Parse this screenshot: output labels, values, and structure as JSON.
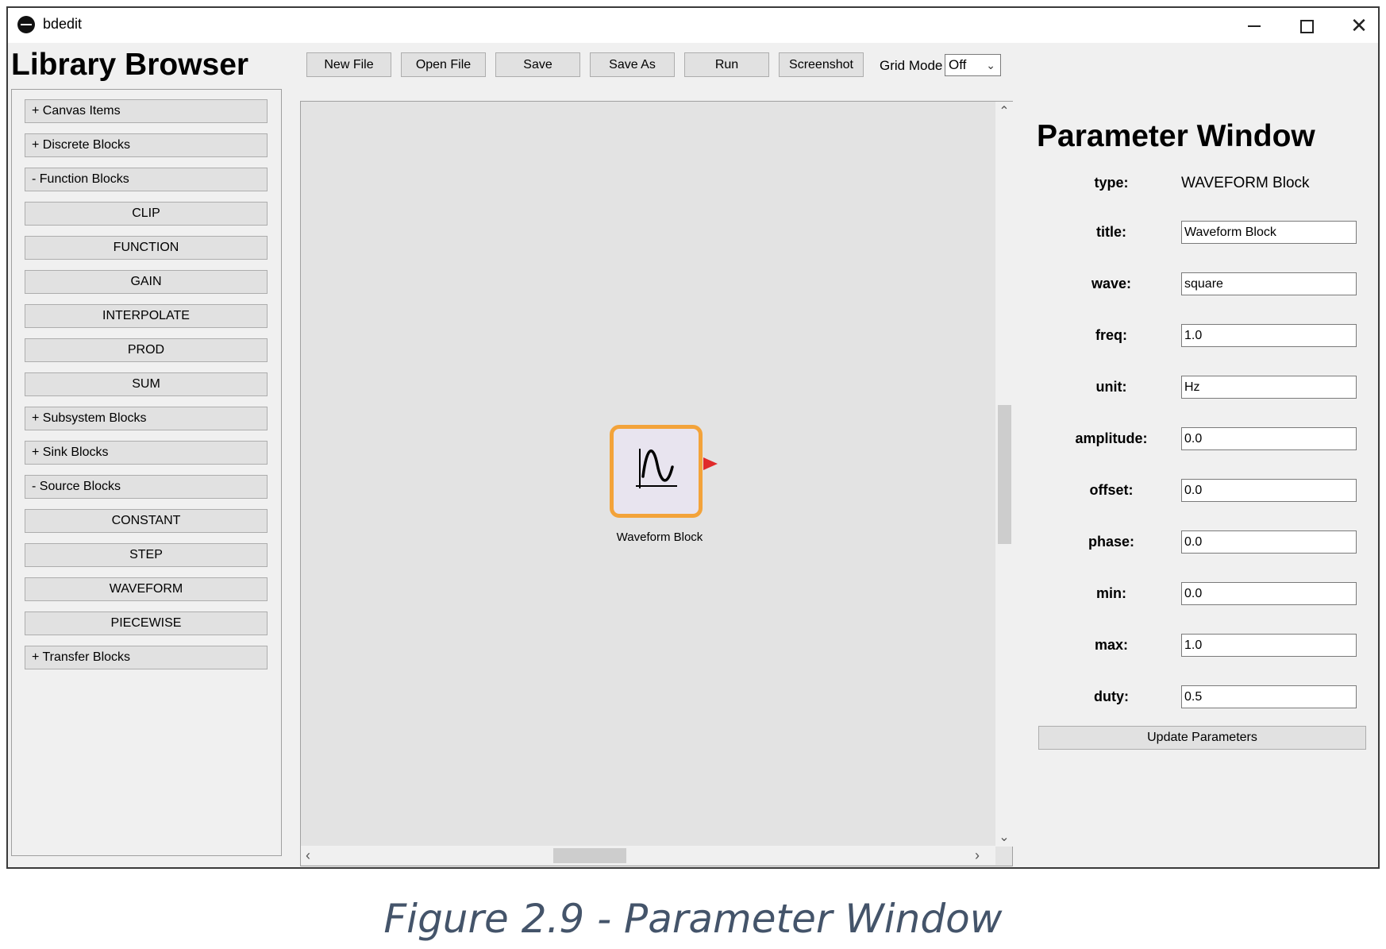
{
  "window": {
    "title": "bdedit",
    "controls": {
      "minimize": "minimize",
      "maximize": "maximize",
      "close": "✕"
    }
  },
  "library": {
    "title": "Library Browser",
    "items": [
      {
        "label": "+ Canvas Items",
        "kind": "cat"
      },
      {
        "label": "+ Discrete Blocks",
        "kind": "cat"
      },
      {
        "label": "-  Function Blocks",
        "kind": "cat"
      },
      {
        "label": "CLIP",
        "kind": "item"
      },
      {
        "label": "FUNCTION",
        "kind": "item"
      },
      {
        "label": "GAIN",
        "kind": "item"
      },
      {
        "label": "INTERPOLATE",
        "kind": "item"
      },
      {
        "label": "PROD",
        "kind": "item"
      },
      {
        "label": "SUM",
        "kind": "item"
      },
      {
        "label": "+ Subsystem Blocks",
        "kind": "cat"
      },
      {
        "label": "+ Sink Blocks",
        "kind": "cat"
      },
      {
        "label": "-  Source Blocks",
        "kind": "cat"
      },
      {
        "label": "CONSTANT",
        "kind": "item"
      },
      {
        "label": "STEP",
        "kind": "item"
      },
      {
        "label": "WAVEFORM",
        "kind": "item"
      },
      {
        "label": "PIECEWISE",
        "kind": "item"
      },
      {
        "label": "+ Transfer Blocks",
        "kind": "cat"
      }
    ]
  },
  "toolbar": {
    "new_file": "New File",
    "open_file": "Open File",
    "save": "Save",
    "save_as": "Save As",
    "run": "Run",
    "screenshot": "Screenshot",
    "grid_mode_label": "Grid Mode",
    "grid_mode_value": "Off"
  },
  "canvas": {
    "block": {
      "label": "Waveform Block",
      "icon": "sine-wave-icon",
      "border_color": "#f3a33a",
      "port_color": "#e02a2a"
    }
  },
  "params": {
    "title": "Parameter Window",
    "type_label": "type:",
    "type_value": "WAVEFORM Block",
    "fields": [
      {
        "label": "title:",
        "value": "Waveform Block"
      },
      {
        "label": "wave:",
        "value": "square"
      },
      {
        "label": "freq:",
        "value": "1.0"
      },
      {
        "label": "unit:",
        "value": "Hz"
      },
      {
        "label": "amplitude:",
        "value": "0.0"
      },
      {
        "label": "offset:",
        "value": "0.0"
      },
      {
        "label": "phase:",
        "value": "0.0"
      },
      {
        "label": "min:",
        "value": "0.0"
      },
      {
        "label": "max:",
        "value": "1.0"
      },
      {
        "label": "duty:",
        "value": "0.5"
      }
    ],
    "update_label": "Update Parameters"
  },
  "caption": "Figure 2.9 - Parameter Window"
}
